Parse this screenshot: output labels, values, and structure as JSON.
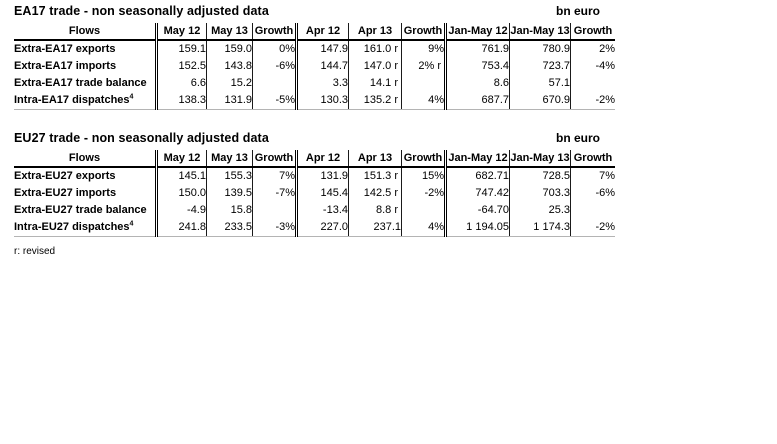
{
  "page": {
    "footnote": "r: revised"
  },
  "tables": [
    {
      "title": "EA17 trade - non seasonally adjusted data",
      "unit": "bn euro",
      "columns": [
        "Flows",
        "May 12",
        "May 13",
        "Growth",
        "Apr 12",
        "Apr 13",
        "Growth",
        "Jan-May 12",
        "Jan-May 13",
        "Growth"
      ],
      "rows": [
        {
          "label": "Extra-EA17 exports",
          "cells": [
            "159.1",
            "159.0",
            "0%",
            "147.9",
            "161.0 r",
            "9%",
            "761.9",
            "780.9",
            "2%"
          ]
        },
        {
          "label": "Extra-EA17 imports",
          "cells": [
            "152.5",
            "143.8",
            "-6%",
            "144.7",
            "147.0 r",
            "2% r",
            "753.4",
            "723.7",
            "-4%"
          ]
        },
        {
          "label": "Extra-EA17 trade balance",
          "cells": [
            "6.6",
            "15.2",
            "",
            "3.3",
            "14.1 r",
            "",
            "8.6",
            "57.1",
            ""
          ]
        },
        {
          "label": "Intra-EA17 dispatches",
          "sup": "4",
          "cells": [
            "138.3",
            "131.9",
            "-5%",
            "130.3",
            "135.2 r",
            "4%",
            "687.7",
            "670.9",
            "-2%"
          ]
        }
      ]
    },
    {
      "title": "EU27 trade - non seasonally adjusted data",
      "unit": "bn euro",
      "columns": [
        "Flows",
        "May 12",
        "May 13",
        "Growth",
        "Apr 12",
        "Apr 13",
        "Growth",
        "Jan-May 12",
        "Jan-May 13",
        "Growth"
      ],
      "rows": [
        {
          "label": "Extra-EU27 exports",
          "cells": [
            "145.1",
            "155.3",
            "7%",
            "131.9",
            "151.3 r",
            "15%",
            "682.71",
            "728.5",
            "7%"
          ]
        },
        {
          "label": "Extra-EU27 imports",
          "cells": [
            "150.0",
            "139.5",
            "-7%",
            "145.4",
            "142.5 r",
            "-2%",
            "747.42",
            "703.3",
            "-6%"
          ]
        },
        {
          "label": "Extra-EU27 trade balance",
          "cells": [
            "-4.9",
            "15.8",
            "",
            "-13.4",
            "8.8 r",
            "",
            "-64.70",
            "25.3",
            ""
          ]
        },
        {
          "label": "Intra-EU27 dispatches",
          "sup": "4",
          "cells": [
            "241.8",
            "233.5",
            "-3%",
            "227.0",
            "237.1",
            "4%",
            "1 194.05",
            "1 174.3",
            "-2%"
          ]
        }
      ]
    }
  ]
}
